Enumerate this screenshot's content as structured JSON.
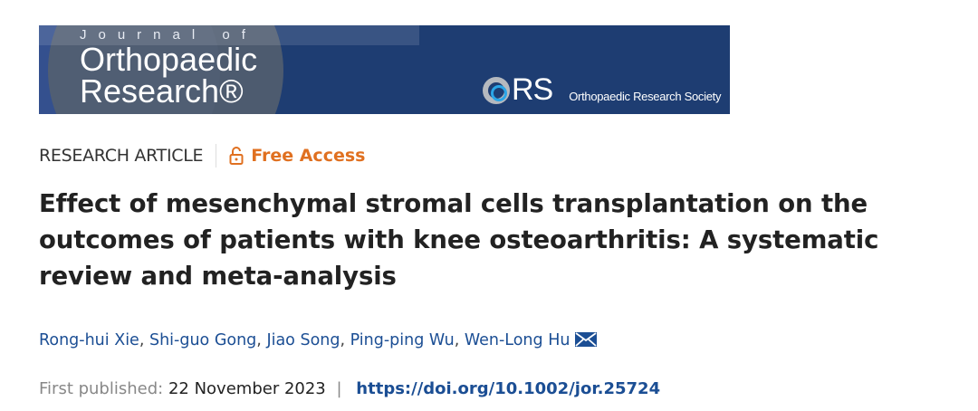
{
  "banner": {
    "journal_prefix": "Journal of",
    "journal_name_line1": "Orthopaedic",
    "journal_name_line2": "Research®",
    "society_abbr": "RS",
    "society_name": "Orthopaedic Research Society"
  },
  "article": {
    "type": "RESEARCH ARTICLE",
    "access": "Free Access",
    "access_color": "#e07020",
    "title": "Effect of mesenchymal stromal cells transplantation on the outcomes of patients with knee osteoarthritis: A systematic review and meta-analysis",
    "authors": [
      "Rong-hui Xie",
      "Shi-guo Gong",
      "Jiao Song",
      "Ping-ping Wu",
      "Wen-Long Hu"
    ],
    "published_label": "First published:",
    "published_date": "22 November 2023",
    "separator": "|",
    "doi": "https://doi.org/10.1002/jor.25724",
    "icons": {
      "access": "open-lock-icon",
      "corresponding": "envelope-icon"
    }
  }
}
